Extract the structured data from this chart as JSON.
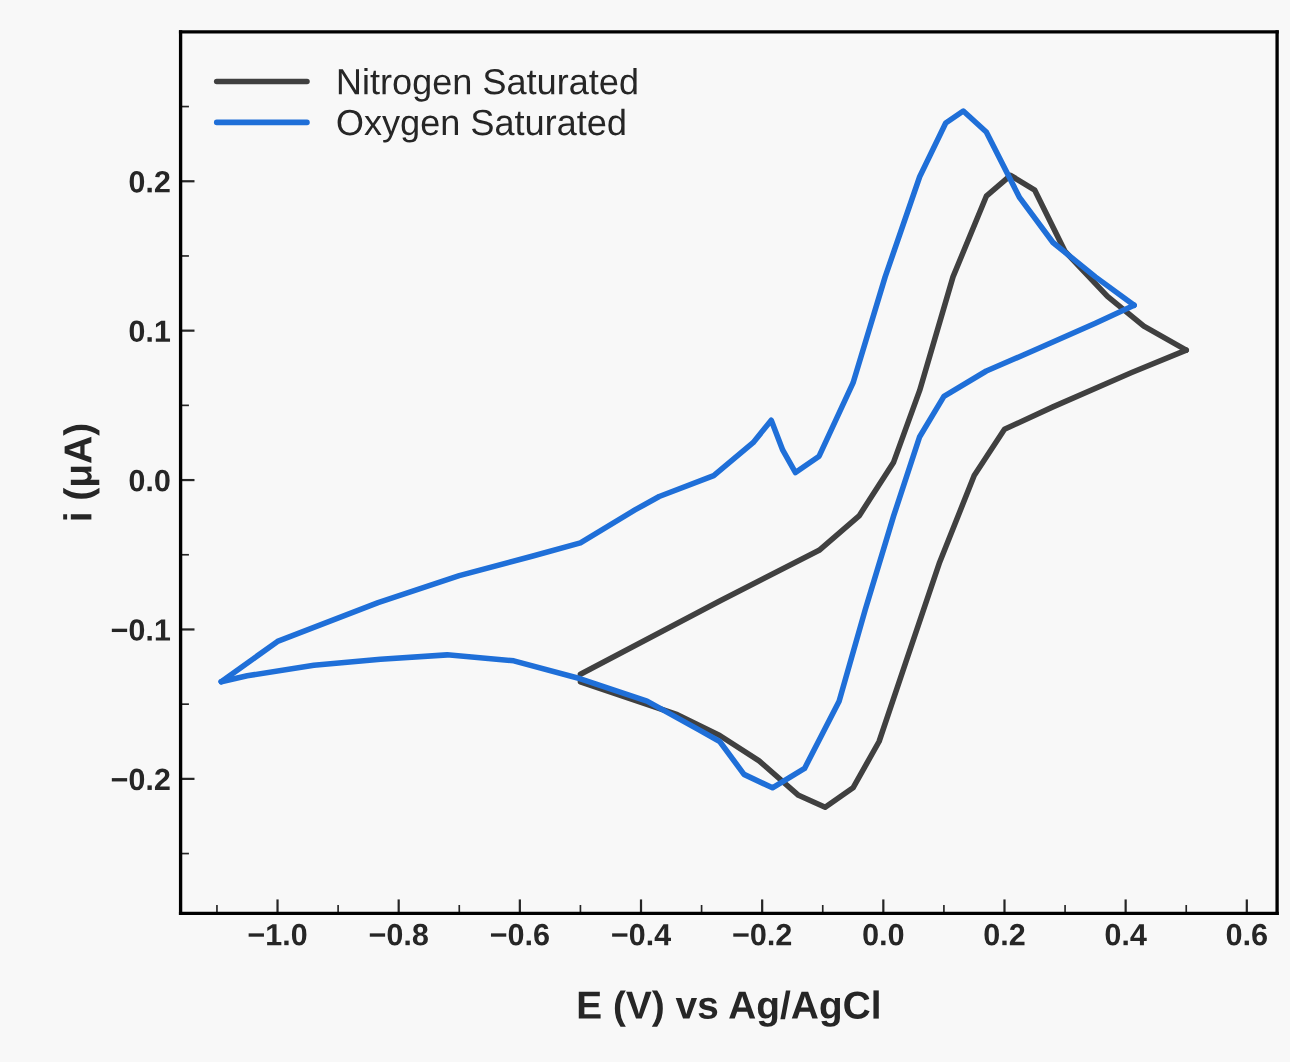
{
  "chart_data": {
    "type": "line",
    "xlabel": "E (V) vs Ag/AgCl",
    "ylabel": "i (μA)",
    "xlim": [
      -1.16,
      0.65
    ],
    "ylim": [
      -0.29,
      0.3
    ],
    "xticks": [
      {
        "value": -1.0,
        "label": "−1.0"
      },
      {
        "value": -0.8,
        "label": "−0.8"
      },
      {
        "value": -0.6,
        "label": "−0.6"
      },
      {
        "value": -0.4,
        "label": "−0.4"
      },
      {
        "value": -0.2,
        "label": "−0.2"
      },
      {
        "value": 0.0,
        "label": "0.0"
      },
      {
        "value": 0.2,
        "label": "0.2"
      },
      {
        "value": 0.4,
        "label": "0.4"
      },
      {
        "value": 0.6,
        "label": "0.6"
      }
    ],
    "yticks": [
      {
        "value": -0.2,
        "label": "−0.2"
      },
      {
        "value": -0.1,
        "label": "−0.1"
      },
      {
        "value": 0.0,
        "label": "0.0"
      },
      {
        "value": 0.1,
        "label": "0.1"
      },
      {
        "value": 0.2,
        "label": "0.2"
      }
    ],
    "legend": "top left",
    "marker": "none",
    "line_style": "solid",
    "series": [
      {
        "name": "Nitrogen Saturated",
        "color": "#404040",
        "x": [
          -0.5,
          -0.27,
          -0.106,
          -0.04,
          0.017,
          0.06,
          0.115,
          0.17,
          0.21,
          0.25,
          0.3,
          0.37,
          0.43,
          0.5
        ],
        "values": [
          -0.13,
          -0.081,
          -0.047,
          -0.024,
          0.012,
          0.06,
          0.136,
          0.19,
          0.204,
          0.194,
          0.153,
          0.123,
          0.103,
          0.087
        ]
      },
      {
        "color": "#404040",
        "x": [
          0.5,
          0.41,
          0.28,
          0.2,
          0.15,
          0.093,
          0.037,
          -0.007,
          -0.05,
          -0.096,
          -0.14,
          -0.205,
          -0.27,
          -0.34,
          -0.5
        ],
        "values": [
          0.087,
          0.072,
          0.049,
          0.034,
          0.003,
          -0.055,
          -0.122,
          -0.175,
          -0.206,
          -0.219,
          -0.211,
          -0.188,
          -0.171,
          -0.157,
          -0.135
        ]
      },
      {
        "name": "Oxygen Saturated",
        "color": "#1f6fd8",
        "x": [
          -1.093,
          -1.0,
          -0.834,
          -0.7,
          -0.58,
          -0.5,
          -0.41,
          -0.37,
          -0.28,
          -0.215,
          -0.185,
          -0.166,
          -0.145,
          -0.106,
          -0.05,
          0.003,
          0.06,
          0.103,
          0.132,
          0.17,
          0.225,
          0.28,
          0.35,
          0.414
        ],
        "values": [
          -0.135,
          -0.108,
          -0.082,
          -0.064,
          -0.051,
          -0.042,
          -0.02,
          -0.011,
          0.003,
          0.025,
          0.04,
          0.02,
          0.005,
          0.016,
          0.065,
          0.136,
          0.203,
          0.239,
          0.247,
          0.233,
          0.189,
          0.159,
          0.136,
          0.117
        ]
      },
      {
        "color": "#1f6fd8",
        "x": [
          0.414,
          0.35,
          0.25,
          0.17,
          0.1,
          0.06,
          0.017,
          -0.03,
          -0.073,
          -0.13,
          -0.183,
          -0.23,
          -0.27,
          -0.305,
          -0.39,
          -0.5,
          -0.61,
          -0.72,
          -0.83,
          -0.94,
          -1.05,
          -1.093
        ],
        "values": [
          0.117,
          0.105,
          0.087,
          0.073,
          0.056,
          0.029,
          -0.024,
          -0.087,
          -0.148,
          -0.193,
          -0.206,
          -0.197,
          -0.175,
          -0.167,
          -0.148,
          -0.133,
          -0.121,
          -0.117,
          -0.12,
          -0.124,
          -0.131,
          -0.135
        ]
      }
    ]
  }
}
